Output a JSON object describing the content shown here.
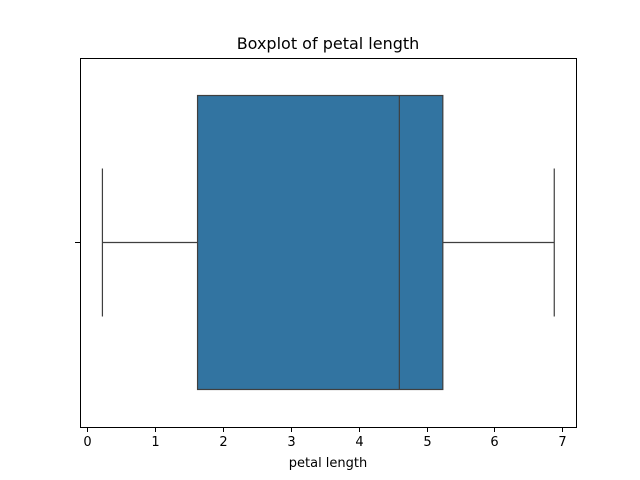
{
  "chart_data": {
    "type": "box",
    "title": "Boxplot of petal length",
    "xlabel": "petal length",
    "ylabel": "",
    "xlim": [
      -0.1,
      7.2
    ],
    "x_ticks": [
      0,
      1,
      2,
      3,
      4,
      5,
      6,
      7
    ],
    "box": {
      "whisker_low": 0.23,
      "q1": 1.63,
      "median": 4.6,
      "q3": 5.24,
      "whisker_high": 6.88
    },
    "grid": false,
    "colors": {
      "box_fill": "#3274a1",
      "lines": "#3f3f3f",
      "axes": "#000000",
      "background": "#ffffff"
    }
  }
}
